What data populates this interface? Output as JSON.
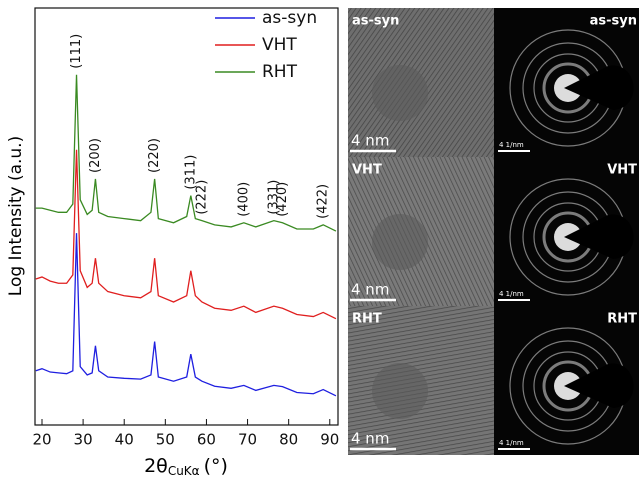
{
  "chart_data": {
    "type": "line",
    "ylabel": "Log Intensity (a.u.)",
    "xlabel": {
      "main": "2θ",
      "sub": "CuKα",
      "unit": "(°)"
    },
    "x": [
      18.5,
      20,
      22,
      24,
      26,
      27.5,
      28.4,
      29.3,
      31,
      32.2,
      33,
      33.8,
      36,
      40,
      44,
      46.5,
      47.4,
      48.3,
      52,
      55.2,
      56.2,
      57.3,
      58.9,
      62,
      66,
      69.1,
      72,
      76.4,
      78.5,
      82,
      86,
      88.4,
      91.5
    ],
    "series": [
      {
        "name": "as-syn",
        "color": "#1f1fe0",
        "values": [
          13,
          13.5,
          12.7,
          12.5,
          12.3,
          13,
          46,
          14,
          12,
          12.5,
          19,
          13,
          11.5,
          11.2,
          11,
          12,
          20,
          11.5,
          10.5,
          11.5,
          17,
          11.5,
          10.5,
          9.3,
          8.8,
          9.5,
          8.3,
          9.5,
          9.2,
          7.8,
          7.5,
          8.5,
          7
        ]
      },
      {
        "name": "VHT",
        "color": "#e01f1f",
        "values": [
          35,
          35.5,
          34.5,
          34,
          34,
          36,
          66,
          37,
          33,
          34,
          40,
          34,
          32,
          31,
          30.5,
          32,
          40,
          31,
          29.5,
          31,
          37,
          31,
          29.5,
          28,
          27.5,
          28.5,
          27,
          28.5,
          28,
          26.5,
          26,
          27,
          25.5
        ]
      },
      {
        "name": "RHT",
        "color": "#3a8a22",
        "values": [
          52,
          52,
          51.5,
          51,
          51,
          53,
          84,
          54,
          50.5,
          51.5,
          59,
          51,
          50,
          49.5,
          49,
          51,
          59,
          49.5,
          48.5,
          50,
          55,
          49.5,
          49,
          48,
          47.5,
          48.5,
          47.5,
          49,
          48.5,
          47,
          47,
          48,
          46.5
        ]
      }
    ],
    "peaks": [
      {
        "label": "(111)",
        "x": 28.4
      },
      {
        "label": "(200)",
        "x": 33
      },
      {
        "label": "(220)",
        "x": 47.4
      },
      {
        "label": "(311)",
        "x": 56.2
      },
      {
        "label": "(222)",
        "x": 58.9
      },
      {
        "label": "(400)",
        "x": 69.1
      },
      {
        "label": "(331)",
        "x": 76.4
      },
      {
        "label": "(420)",
        "x": 78.5
      },
      {
        "label": "(422)",
        "x": 88.4
      }
    ],
    "xlim": [
      18.3,
      92
    ],
    "ylim": [
      0,
      100
    ],
    "xticks": [
      20,
      30,
      40,
      50,
      60,
      70,
      80,
      90
    ],
    "legend": "upper right"
  },
  "panels": [
    {
      "label": "as-syn",
      "scale_bar": "4 nm",
      "diffraction_label": "as-syn",
      "diffraction_scale": "4 1/nm"
    },
    {
      "label": "VHT",
      "scale_bar": "4 nm",
      "diffraction_label": "VHT",
      "diffraction_scale": "4 1/nm"
    },
    {
      "label": "RHT",
      "scale_bar": "4 nm",
      "diffraction_label": "RHT",
      "diffraction_scale": "4 1/nm"
    }
  ]
}
